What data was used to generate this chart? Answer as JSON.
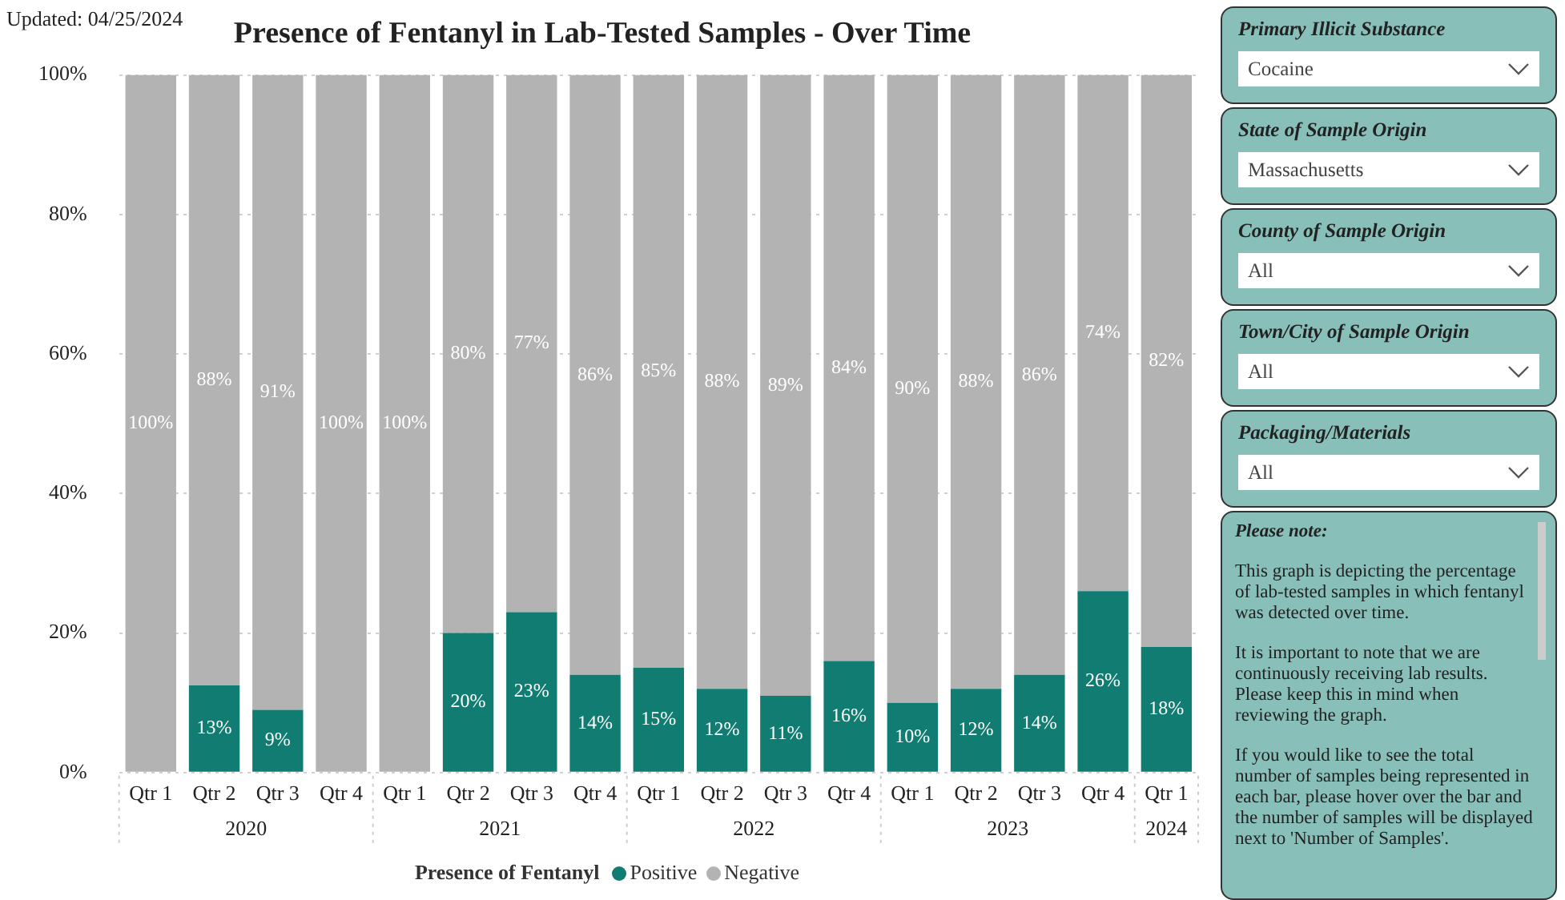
{
  "chart_data": [
    {
      "type": "bar",
      "title": "Presence of Fentanyl in Lab-Tested Samples - Over Time",
      "stacked": true,
      "legend": "bottom",
      "legend_title": "Presence of Fentanyl",
      "marker": "circle",
      "grid": "y",
      "categories": [
        "Qtr 1",
        "Qtr 2",
        "Qtr 3",
        "Qtr 4",
        "Qtr 1",
        "Qtr 2",
        "Qtr 3",
        "Qtr 4",
        "Qtr 1",
        "Qtr 2",
        "Qtr 3",
        "Qtr 4",
        "Qtr 1",
        "Qtr 2",
        "Qtr 3",
        "Qtr 4",
        "Qtr 1"
      ],
      "series": [
        {
          "name": "Positive",
          "color": "#117d72",
          "values": [
            0,
            12.5,
            9,
            0,
            0,
            20,
            23,
            14,
            15,
            12,
            11,
            16,
            10,
            12,
            14,
            26,
            18
          ],
          "value_labels": [
            null,
            "13%",
            "9%",
            null,
            null,
            "20%",
            "23%",
            "14%",
            "15%",
            "12%",
            "11%",
            "16%",
            "10%",
            "12%",
            "14%",
            "26%",
            "18%"
          ]
        },
        {
          "name": "Negative",
          "color": "#b3b3b3",
          "values": [
            100,
            87.5,
            91,
            100,
            100,
            80,
            77,
            86,
            85,
            88,
            89,
            84,
            90,
            88,
            86,
            74,
            82
          ],
          "value_labels": [
            "100%",
            "88%",
            "91%",
            "100%",
            "100%",
            "80%",
            "77%",
            "86%",
            "85%",
            "88%",
            "89%",
            "84%",
            "90%",
            "88%",
            "86%",
            "74%",
            "82%"
          ]
        }
      ],
      "ylim": [
        0,
        100
      ],
      "yticks": [
        {
          "value": 0,
          "label": "0%"
        },
        {
          "value": 20,
          "label": "20%"
        },
        {
          "value": 40,
          "label": "40%"
        },
        {
          "value": 60,
          "label": "60%"
        },
        {
          "value": 80,
          "label": "80%"
        },
        {
          "value": 100,
          "label": "100%"
        }
      ],
      "annotations": [
        "Updated: 04/25/2024",
        "2020",
        "2021",
        "2022",
        "2023",
        "2024"
      ]
    },
    {
      "type": "other",
      "title": "Please note:",
      "categories": [
        "Primary Illicit Substance",
        "State of Sample Origin",
        "County of Sample Origin",
        "Town/City of Sample Origin",
        "Packaging/Materials"
      ],
      "annotations": [
        "Cocaine",
        "Massachusetts",
        "All",
        "All",
        "All",
        "This graph is depicting the percentage of lab-tested samples in which fentanyl was detected over time.",
        "It is important to note that we are continuously receiving lab results. Please keep this in mind when reviewing the graph.",
        "If you would like to see the total number of samples being represented in each bar, please hover over the bar and the number of samples will be displayed next to 'Number of Samples'."
      ]
    }
  ]
}
